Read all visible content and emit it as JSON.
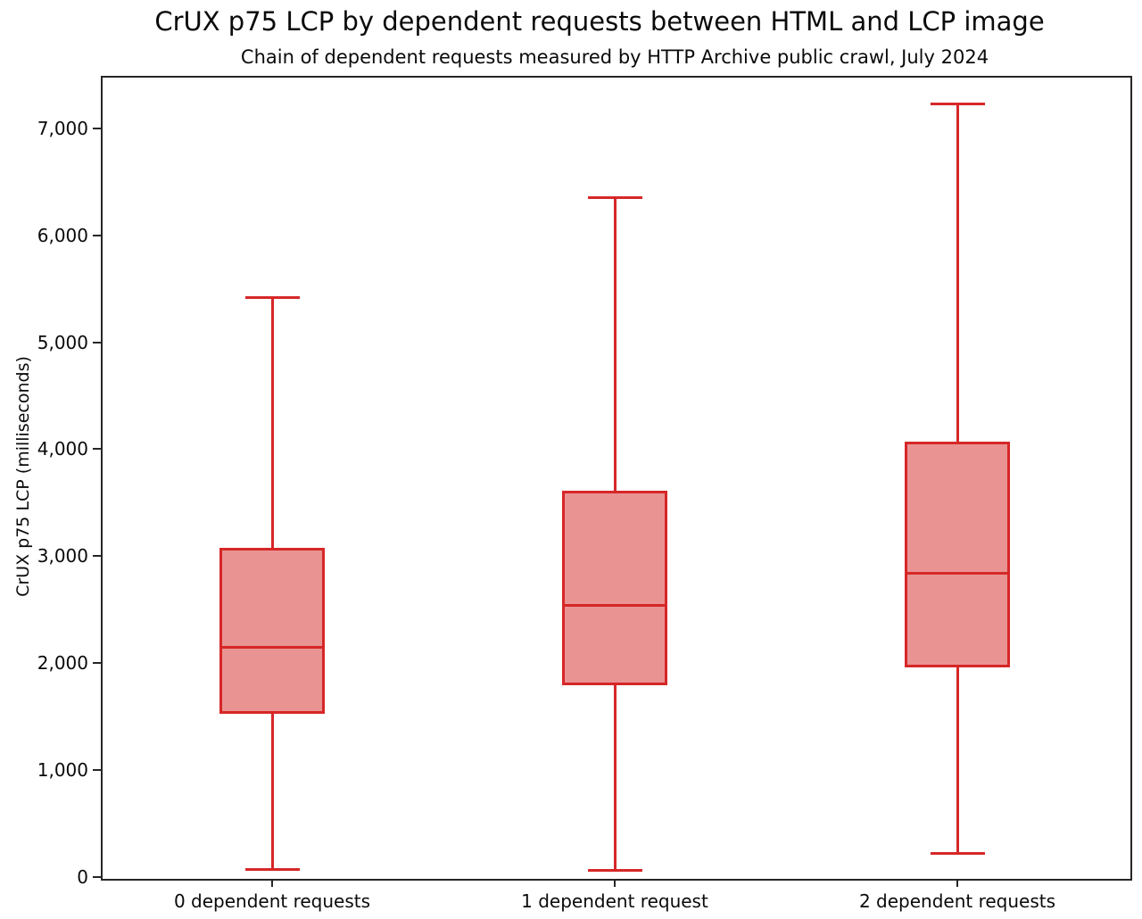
{
  "chart_data": {
    "type": "boxplot",
    "title": "CrUX p75 LCP by dependent requests between HTML and LCP image",
    "subtitle": "Chain of dependent requests measured by HTTP Archive public crawl, July 2024",
    "ylabel": "CrUX p75 LCP (milliseconds)",
    "xlabel": "",
    "ylim": [
      0,
      7490
    ],
    "yticks": [
      0,
      1000,
      2000,
      3000,
      4000,
      5000,
      6000,
      7000
    ],
    "ytick_labels": [
      "0",
      "1,000",
      "2,000",
      "3,000",
      "4,000",
      "5,000",
      "6,000",
      "7,000"
    ],
    "grid": false,
    "legend": false,
    "categories": [
      "0 dependent requests",
      "1 dependent request",
      "2 dependent requests"
    ],
    "series": [
      {
        "category": "0 dependent requests",
        "whisker_low": 70,
        "q1": 1530,
        "median": 2150,
        "q3": 3080,
        "whisker_high": 5420
      },
      {
        "category": "1 dependent request",
        "whisker_low": 60,
        "q1": 1790,
        "median": 2540,
        "q3": 3610,
        "whisker_high": 6350
      },
      {
        "category": "2 dependent requests",
        "whisker_low": 220,
        "q1": 1960,
        "median": 2840,
        "q3": 4070,
        "whisker_high": 7230
      }
    ],
    "colors": {
      "box_line": "#d62728",
      "box_fill": "rgba(214, 39, 40, 0.5)",
      "axis": "#262626",
      "text": "#0a0a0a"
    },
    "units": "milliseconds"
  }
}
